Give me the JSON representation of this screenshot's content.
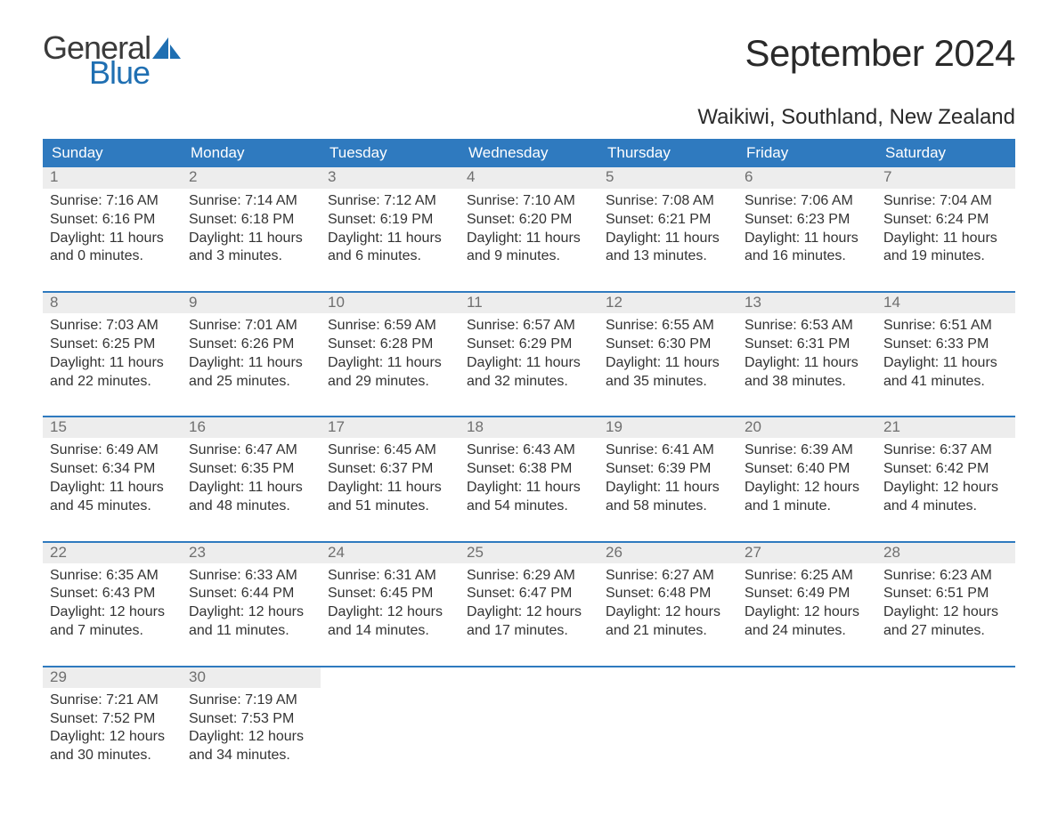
{
  "brand": {
    "word1": "General",
    "word2": "Blue",
    "color_dark": "#3a3a3a",
    "color_blue": "#1f6fb2"
  },
  "title": "September 2024",
  "location": "Waikiwi, Southland, New Zealand",
  "colors": {
    "header_bg": "#2f7abf",
    "header_fg": "#ffffff",
    "daynum_bg": "#ededed",
    "daynum_fg": "#6f6f6f",
    "text": "#333333",
    "page_bg": "#ffffff"
  },
  "day_headers": [
    "Sunday",
    "Monday",
    "Tuesday",
    "Wednesday",
    "Thursday",
    "Friday",
    "Saturday"
  ],
  "weeks": [
    [
      {
        "n": "1",
        "sunrise": "7:16 AM",
        "sunset": "6:16 PM",
        "daylight": "11 hours and 0 minutes."
      },
      {
        "n": "2",
        "sunrise": "7:14 AM",
        "sunset": "6:18 PM",
        "daylight": "11 hours and 3 minutes."
      },
      {
        "n": "3",
        "sunrise": "7:12 AM",
        "sunset": "6:19 PM",
        "daylight": "11 hours and 6 minutes."
      },
      {
        "n": "4",
        "sunrise": "7:10 AM",
        "sunset": "6:20 PM",
        "daylight": "11 hours and 9 minutes."
      },
      {
        "n": "5",
        "sunrise": "7:08 AM",
        "sunset": "6:21 PM",
        "daylight": "11 hours and 13 minutes."
      },
      {
        "n": "6",
        "sunrise": "7:06 AM",
        "sunset": "6:23 PM",
        "daylight": "11 hours and 16 minutes."
      },
      {
        "n": "7",
        "sunrise": "7:04 AM",
        "sunset": "6:24 PM",
        "daylight": "11 hours and 19 minutes."
      }
    ],
    [
      {
        "n": "8",
        "sunrise": "7:03 AM",
        "sunset": "6:25 PM",
        "daylight": "11 hours and 22 minutes."
      },
      {
        "n": "9",
        "sunrise": "7:01 AM",
        "sunset": "6:26 PM",
        "daylight": "11 hours and 25 minutes."
      },
      {
        "n": "10",
        "sunrise": "6:59 AM",
        "sunset": "6:28 PM",
        "daylight": "11 hours and 29 minutes."
      },
      {
        "n": "11",
        "sunrise": "6:57 AM",
        "sunset": "6:29 PM",
        "daylight": "11 hours and 32 minutes."
      },
      {
        "n": "12",
        "sunrise": "6:55 AM",
        "sunset": "6:30 PM",
        "daylight": "11 hours and 35 minutes."
      },
      {
        "n": "13",
        "sunrise": "6:53 AM",
        "sunset": "6:31 PM",
        "daylight": "11 hours and 38 minutes."
      },
      {
        "n": "14",
        "sunrise": "6:51 AM",
        "sunset": "6:33 PM",
        "daylight": "11 hours and 41 minutes."
      }
    ],
    [
      {
        "n": "15",
        "sunrise": "6:49 AM",
        "sunset": "6:34 PM",
        "daylight": "11 hours and 45 minutes."
      },
      {
        "n": "16",
        "sunrise": "6:47 AM",
        "sunset": "6:35 PM",
        "daylight": "11 hours and 48 minutes."
      },
      {
        "n": "17",
        "sunrise": "6:45 AM",
        "sunset": "6:37 PM",
        "daylight": "11 hours and 51 minutes."
      },
      {
        "n": "18",
        "sunrise": "6:43 AM",
        "sunset": "6:38 PM",
        "daylight": "11 hours and 54 minutes."
      },
      {
        "n": "19",
        "sunrise": "6:41 AM",
        "sunset": "6:39 PM",
        "daylight": "11 hours and 58 minutes."
      },
      {
        "n": "20",
        "sunrise": "6:39 AM",
        "sunset": "6:40 PM",
        "daylight": "12 hours and 1 minute."
      },
      {
        "n": "21",
        "sunrise": "6:37 AM",
        "sunset": "6:42 PM",
        "daylight": "12 hours and 4 minutes."
      }
    ],
    [
      {
        "n": "22",
        "sunrise": "6:35 AM",
        "sunset": "6:43 PM",
        "daylight": "12 hours and 7 minutes."
      },
      {
        "n": "23",
        "sunrise": "6:33 AM",
        "sunset": "6:44 PM",
        "daylight": "12 hours and 11 minutes."
      },
      {
        "n": "24",
        "sunrise": "6:31 AM",
        "sunset": "6:45 PM",
        "daylight": "12 hours and 14 minutes."
      },
      {
        "n": "25",
        "sunrise": "6:29 AM",
        "sunset": "6:47 PM",
        "daylight": "12 hours and 17 minutes."
      },
      {
        "n": "26",
        "sunrise": "6:27 AM",
        "sunset": "6:48 PM",
        "daylight": "12 hours and 21 minutes."
      },
      {
        "n": "27",
        "sunrise": "6:25 AM",
        "sunset": "6:49 PM",
        "daylight": "12 hours and 24 minutes."
      },
      {
        "n": "28",
        "sunrise": "6:23 AM",
        "sunset": "6:51 PM",
        "daylight": "12 hours and 27 minutes."
      }
    ],
    [
      {
        "n": "29",
        "sunrise": "7:21 AM",
        "sunset": "7:52 PM",
        "daylight": "12 hours and 30 minutes."
      },
      {
        "n": "30",
        "sunrise": "7:19 AM",
        "sunset": "7:53 PM",
        "daylight": "12 hours and 34 minutes."
      },
      null,
      null,
      null,
      null,
      null
    ]
  ],
  "labels": {
    "sunrise": "Sunrise: ",
    "sunset": "Sunset: ",
    "daylight": "Daylight: "
  }
}
